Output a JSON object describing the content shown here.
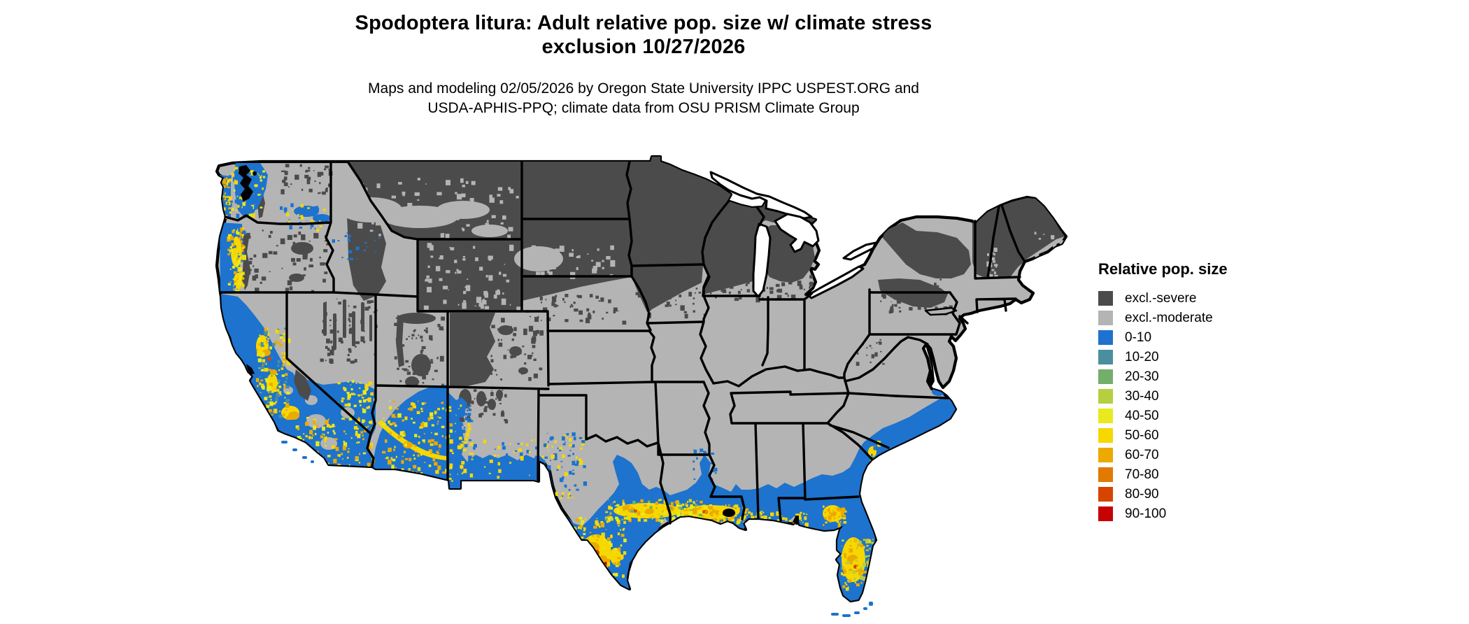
{
  "title": {
    "line1": "Spodoptera litura: Adult relative pop. size w/ climate stress",
    "line2": "exclusion 10/27/2026"
  },
  "subtitle": {
    "line1": "Maps and modeling 02/05/2026 by Oregon State University IPPC USPEST.ORG and",
    "line2": "USDA-APHIS-PPQ; climate data from OSU PRISM Climate Group"
  },
  "legend": {
    "title": "Relative pop. size",
    "items": [
      {
        "label": "excl.-severe",
        "color_key": "sev"
      },
      {
        "label": "excl.-moderate",
        "color_key": "mod"
      },
      {
        "label": "0-10",
        "color_key": "b0"
      },
      {
        "label": "10-20",
        "color_key": "b10"
      },
      {
        "label": "20-30",
        "color_key": "g20"
      },
      {
        "label": "30-40",
        "color_key": "yg30"
      },
      {
        "label": "40-50",
        "color_key": "y40"
      },
      {
        "label": "50-60",
        "color_key": "y50"
      },
      {
        "label": "60-70",
        "color_key": "o60"
      },
      {
        "label": "70-80",
        "color_key": "o70"
      },
      {
        "label": "80-90",
        "color_key": "r80"
      },
      {
        "label": "90-100",
        "color_key": "r90"
      }
    ]
  },
  "palette": {
    "sev": "#4b4b4b",
    "mod": "#b4b4b4",
    "b0": "#1d73cd",
    "b10": "#4a8f9f",
    "g20": "#74ae6b",
    "yg30": "#b5cf40",
    "y40": "#e7ea1d",
    "y50": "#f7d700",
    "o60": "#eca900",
    "o70": "#e27a00",
    "r80": "#d64400",
    "r90": "#c60300",
    "border": "#000000",
    "water": "#ffffff"
  }
}
